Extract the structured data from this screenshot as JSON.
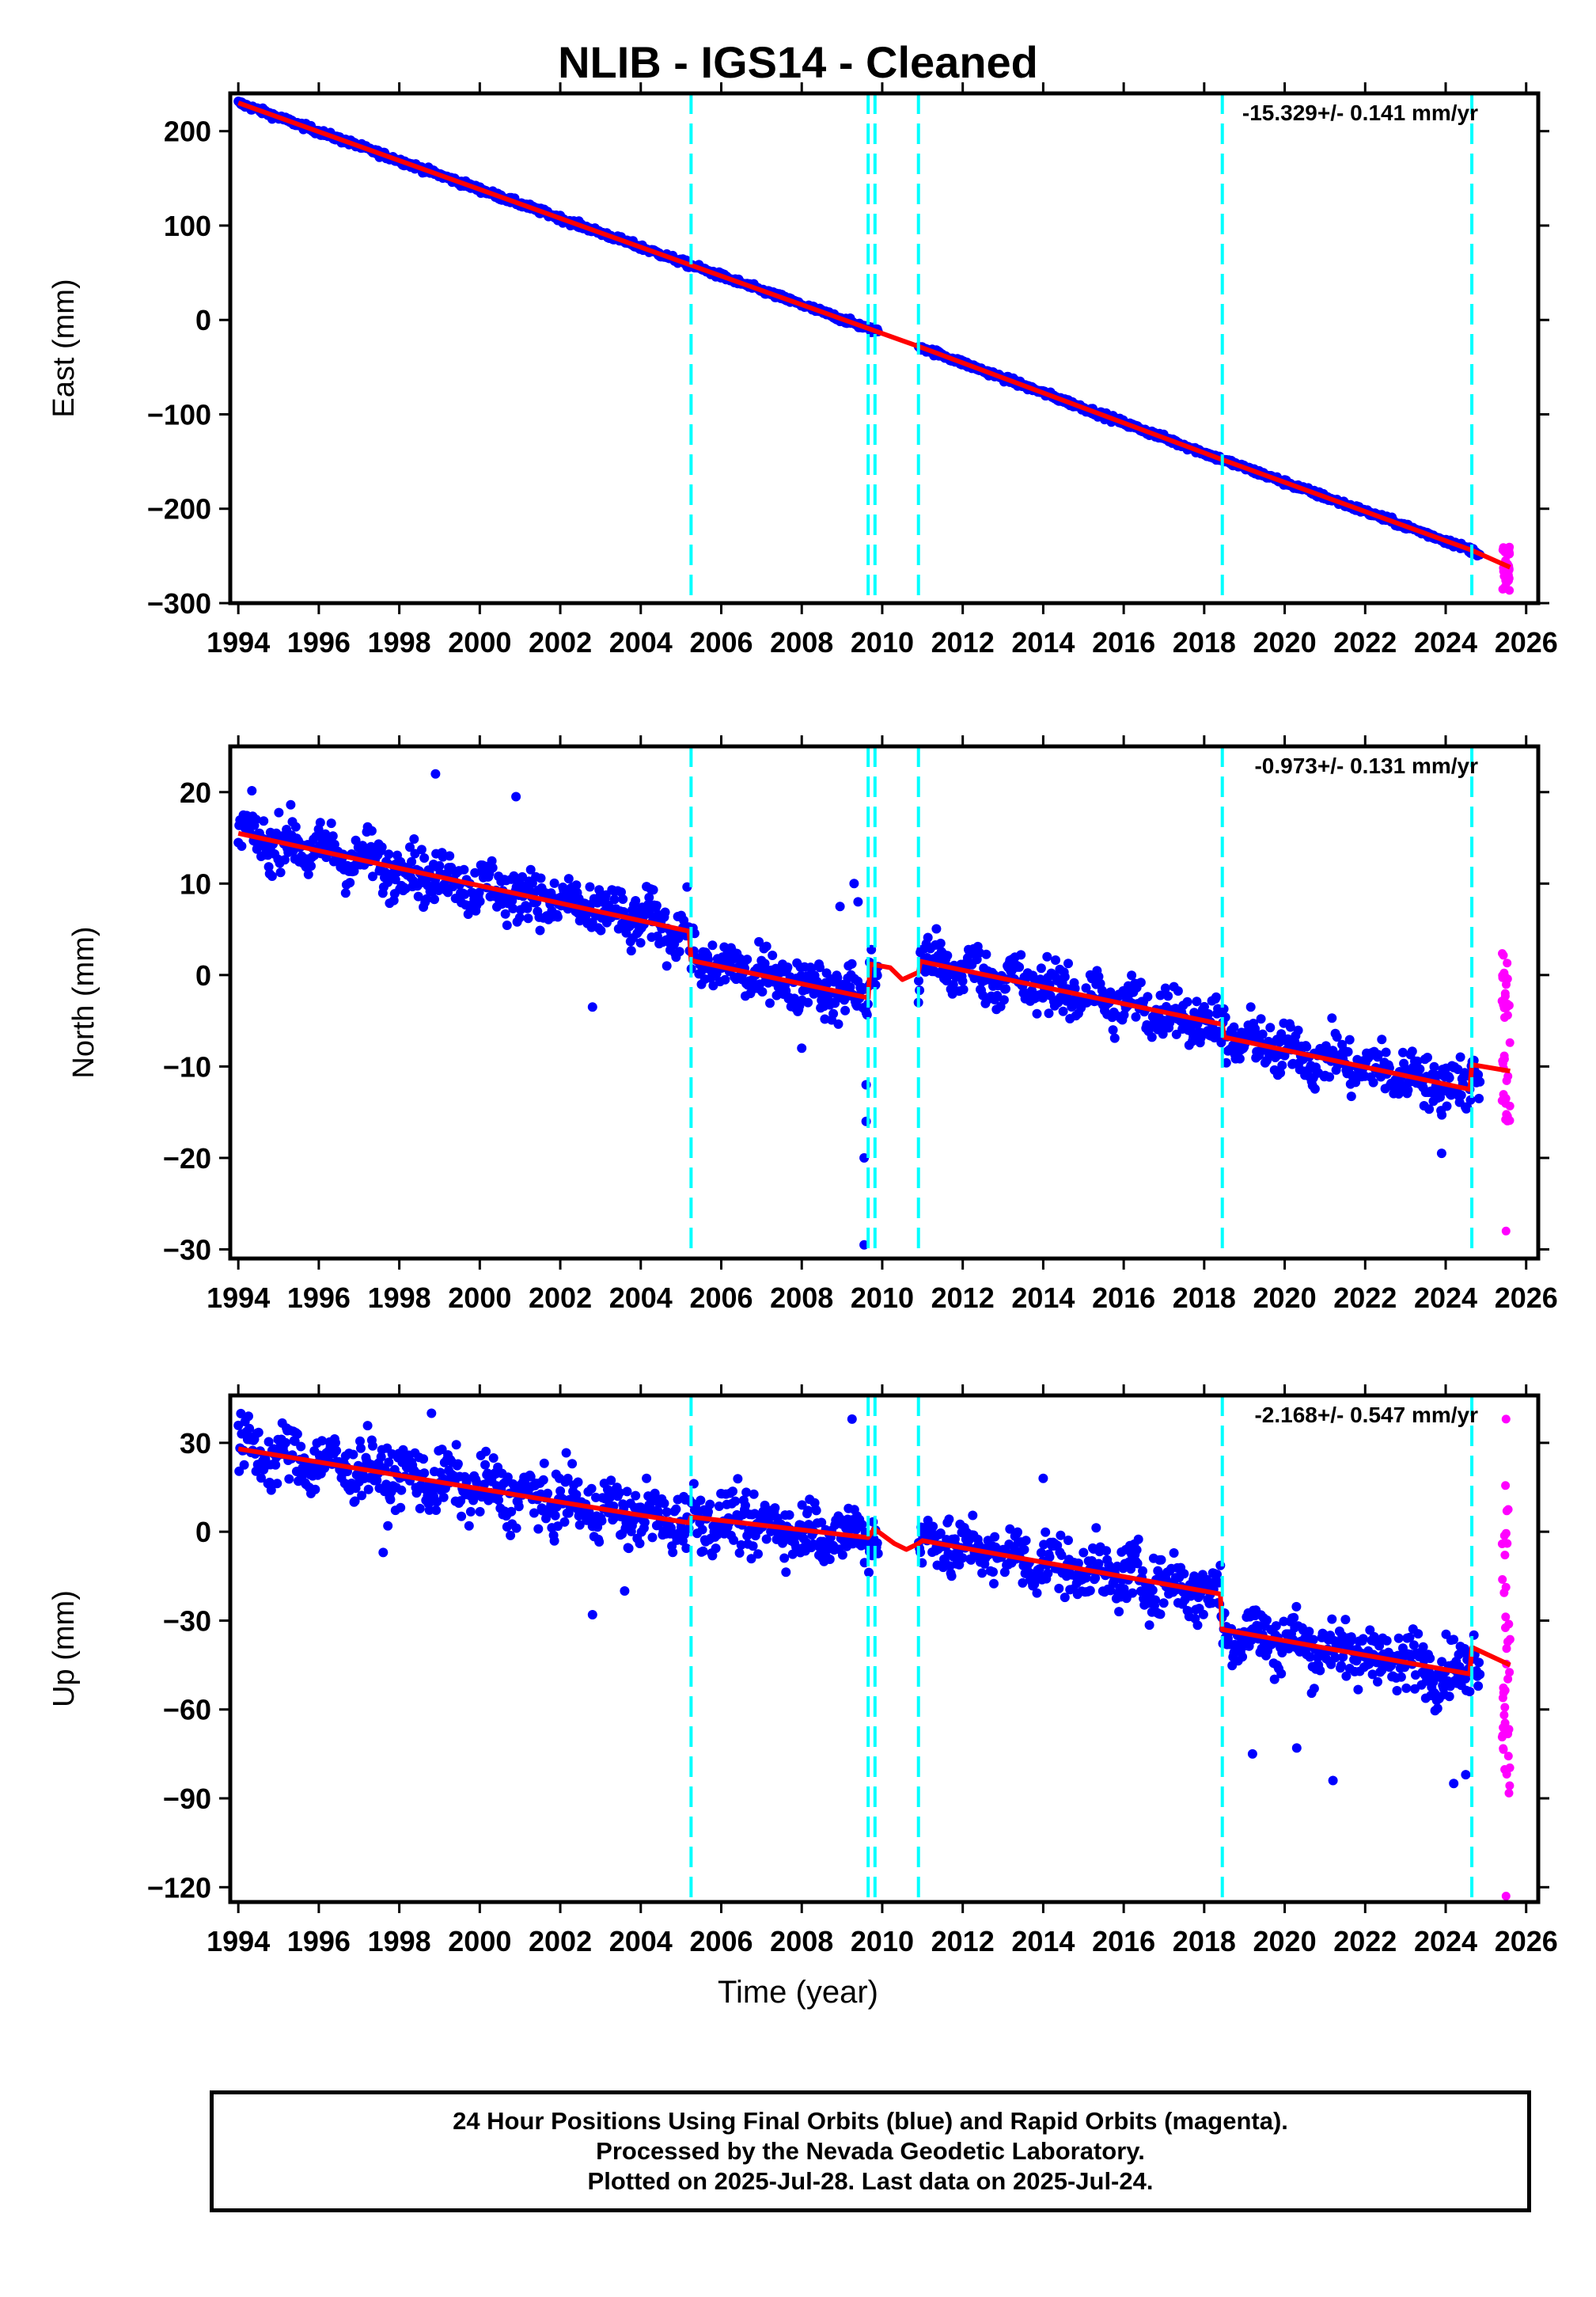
{
  "title": "NLIB  - IGS14 - Cleaned",
  "xlabel": "Time (year)",
  "footer": {
    "line1": "24 Hour Positions Using Final Orbits (blue) and Rapid Orbits (magenta).",
    "line2": "Processed by the Nevada Geodetic Laboratory.",
    "line3": "Plotted on 2025-Jul-28. Last data on 2025-Jul-24."
  },
  "colors": {
    "final": "#0000ff",
    "rapid": "#ff00ff",
    "model": "#ff0000",
    "events": "#00ffff",
    "frame": "#000000"
  },
  "chart_data": [
    {
      "type": "scatter",
      "component": "east",
      "ylabel": "East (mm)",
      "rate_text": "-15.329+/- 0.141 mm/yr",
      "xlim": [
        1993.8,
        2026.3
      ],
      "ylim": [
        -300,
        240
      ],
      "xticks": [
        1994,
        1996,
        1998,
        2000,
        2002,
        2004,
        2006,
        2008,
        2010,
        2012,
        2014,
        2016,
        2018,
        2020,
        2022,
        2024,
        2026
      ],
      "yticks": [
        -300,
        -200,
        -100,
        0,
        100,
        200
      ],
      "event_lines": [
        2005.25,
        2009.65,
        2009.82,
        2010.9,
        2018.45,
        2024.65
      ],
      "gaps": [
        [
          2009.9,
          2010.9
        ]
      ],
      "model_offsets": [
        [
          2005.25,
          0
        ],
        [
          2009.82,
          0
        ],
        [
          2018.45,
          0
        ]
      ],
      "model_points": [
        [
          1994.0,
          230
        ],
        [
          2005.25,
          58
        ],
        [
          2010.9,
          -28
        ],
        [
          2018.45,
          -148
        ],
        [
          2024.65,
          -244
        ],
        [
          2025.6,
          -262
        ]
      ],
      "scatter_sigma": 3,
      "rapid": {
        "x": 2025.5,
        "yrange": [
          -290,
          -240
        ]
      }
    },
    {
      "type": "scatter",
      "component": "north",
      "ylabel": "North (mm)",
      "rate_text": "-0.973+/- 0.131 mm/yr",
      "xlim": [
        1993.8,
        2026.3
      ],
      "ylim": [
        -31,
        25
      ],
      "xticks": [
        1994,
        1996,
        1998,
        2000,
        2002,
        2004,
        2006,
        2008,
        2010,
        2012,
        2014,
        2016,
        2018,
        2020,
        2022,
        2024,
        2026
      ],
      "yticks": [
        -30,
        -20,
        -10,
        0,
        10,
        20
      ],
      "event_lines": [
        2005.25,
        2009.65,
        2009.82,
        2010.9,
        2018.45,
        2024.65
      ],
      "gaps": [
        [
          2009.9,
          2010.9
        ]
      ],
      "model_points": [
        [
          1994.0,
          15.5
        ],
        [
          2005.2,
          4.8
        ],
        [
          2005.25,
          1.6
        ],
        [
          2009.65,
          -2.5
        ],
        [
          2009.7,
          1.2
        ],
        [
          2010.2,
          0.8
        ],
        [
          2010.5,
          -0.5
        ],
        [
          2010.9,
          0.3
        ],
        [
          2010.95,
          1.5
        ],
        [
          2018.45,
          -5.4
        ],
        [
          2018.5,
          -6.8
        ],
        [
          2024.6,
          -12.5
        ],
        [
          2024.65,
          -9.8
        ],
        [
          2025.6,
          -10.5
        ]
      ],
      "scatter_sigma": 2.6,
      "outliers": [
        [
          2009.55,
          -29.5
        ],
        [
          2009.55,
          -20
        ],
        [
          2009.6,
          -16
        ],
        [
          2009.6,
          -12
        ],
        [
          2009.3,
          10
        ],
        [
          2009.4,
          8
        ],
        [
          2008.95,
          7.5
        ],
        [
          1998.9,
          22
        ],
        [
          2000.9,
          19.5
        ],
        [
          2002.8,
          -3.5
        ],
        [
          2008.0,
          -8
        ],
        [
          2010.9,
          -3
        ],
        [
          2023.9,
          -19.5
        ]
      ],
      "rapid": {
        "x": 2025.5,
        "yrange": [
          -17,
          3
        ],
        "outlier": -28
      }
    },
    {
      "type": "scatter",
      "component": "up",
      "ylabel": "Up (mm)",
      "rate_text": "-2.168+/- 0.547 mm/yr",
      "xlim": [
        1993.8,
        2026.3
      ],
      "ylim": [
        -125,
        46
      ],
      "xticks": [
        1994,
        1996,
        1998,
        2000,
        2002,
        2004,
        2006,
        2008,
        2010,
        2012,
        2014,
        2016,
        2018,
        2020,
        2022,
        2024,
        2026
      ],
      "yticks": [
        -120,
        -90,
        -60,
        -30,
        0,
        30
      ],
      "event_lines": [
        2005.25,
        2009.65,
        2009.82,
        2010.9,
        2018.45,
        2024.65
      ],
      "gaps": [
        [
          2009.9,
          2010.9
        ]
      ],
      "model_points": [
        [
          1994.0,
          28
        ],
        [
          2002.0,
          10
        ],
        [
          2003.8,
          6
        ],
        [
          2005.2,
          3
        ],
        [
          2005.25,
          5
        ],
        [
          2009.65,
          -2
        ],
        [
          2009.8,
          1
        ],
        [
          2010.3,
          -4
        ],
        [
          2010.6,
          -6
        ],
        [
          2010.9,
          -4
        ],
        [
          2011.0,
          -3
        ],
        [
          2018.4,
          -21
        ],
        [
          2018.45,
          -33
        ],
        [
          2024.6,
          -48
        ],
        [
          2024.65,
          -39
        ],
        [
          2025.6,
          -45
        ]
      ],
      "scatter_sigma": 9,
      "outliers": [
        [
          1997.6,
          -7
        ],
        [
          2003.6,
          -20
        ],
        [
          2002.8,
          -28
        ],
        [
          1998.8,
          40
        ],
        [
          2009.25,
          38
        ],
        [
          2014.0,
          18
        ],
        [
          2019.2,
          -75
        ],
        [
          2021.2,
          -84
        ],
        [
          2024.2,
          -85
        ],
        [
          2024.5,
          -82
        ],
        [
          2020.3,
          -73
        ]
      ],
      "rapid": {
        "x": 2025.5,
        "yrange": [
          -90,
          18
        ],
        "outlier": -123,
        "high": 38
      }
    }
  ]
}
